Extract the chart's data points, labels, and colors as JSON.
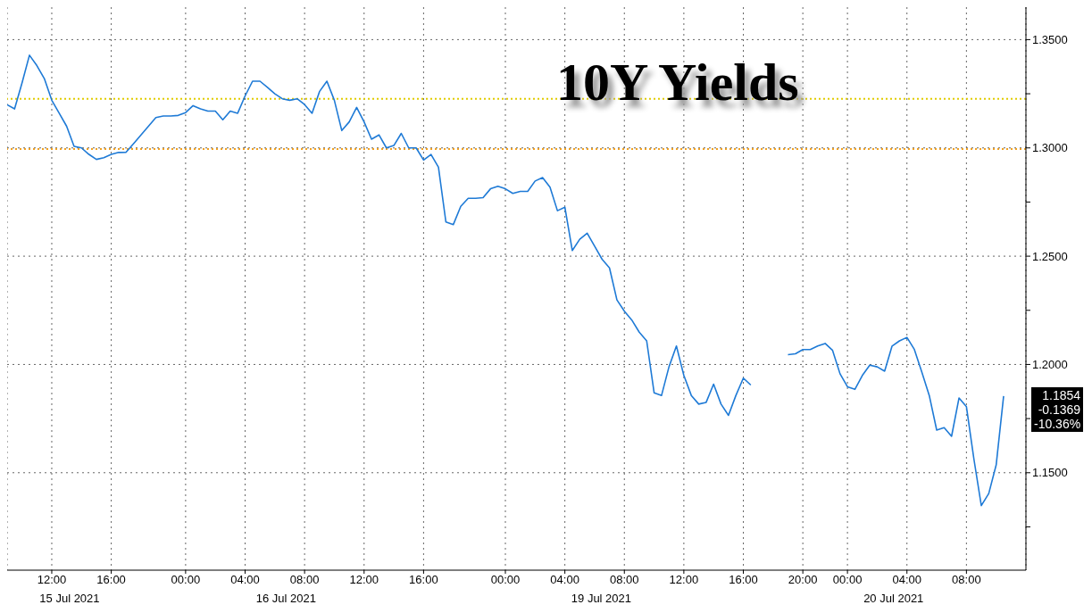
{
  "chart_data": {
    "type": "line",
    "title": "10Y Yields",
    "categories": [
      null,
      null,
      null,
      null,
      null,
      null,
      "12:00",
      null,
      null,
      null,
      null,
      null,
      null,
      null,
      "16:00",
      null,
      null,
      null,
      null,
      null,
      null,
      null,
      null,
      null,
      "00:00",
      null,
      null,
      null,
      null,
      null,
      null,
      null,
      "04:00",
      null,
      null,
      null,
      null,
      null,
      null,
      null,
      "08:00",
      null,
      null,
      null,
      null,
      null,
      null,
      null,
      "12:00",
      null,
      null,
      null,
      null,
      null,
      null,
      null,
      "16:00",
      null,
      null,
      null,
      null,
      null,
      null,
      null,
      null,
      null,
      null,
      "00:00",
      null,
      null,
      null,
      null,
      null,
      null,
      null,
      "04:00",
      null,
      null,
      null,
      null,
      null,
      null,
      null,
      "08:00",
      null,
      null,
      null,
      null,
      null,
      null,
      null,
      "12:00",
      null,
      null,
      null,
      null,
      null,
      null,
      null,
      "16:00",
      null,
      null,
      null,
      null,
      null,
      null,
      null,
      "20:00",
      null,
      null,
      null,
      null,
      null,
      "00:00",
      null,
      null,
      null,
      null,
      null,
      null,
      null,
      "04:00",
      null,
      null,
      null,
      null,
      null,
      null,
      null,
      "08:00",
      null,
      null,
      null,
      null,
      null,
      null,
      null,
      null
    ],
    "series": [
      {
        "color": "#1e7ad6",
        "values": [
          1.3199,
          1.318,
          1.33,
          1.3428,
          1.338,
          1.332,
          1.322,
          1.316,
          1.31,
          1.3007,
          1.3,
          1.297,
          1.2947,
          1.2955,
          1.297,
          1.2979,
          1.298,
          1.302,
          1.306,
          1.31,
          1.314,
          1.3147,
          1.3147,
          1.315,
          1.3163,
          1.3195,
          1.318,
          1.317,
          1.317,
          1.313,
          1.317,
          1.316,
          1.324,
          1.3308,
          1.3308,
          1.328,
          1.325,
          1.3227,
          1.322,
          1.3227,
          1.32,
          1.316,
          1.326,
          1.3308,
          1.322,
          1.308,
          1.312,
          1.3187,
          1.312,
          1.304,
          1.306,
          1.3,
          1.3011,
          1.3067,
          1.3,
          1.3,
          1.2944,
          1.297,
          1.2911,
          1.2658,
          1.2646,
          1.273,
          1.2767,
          1.2767,
          1.277,
          1.2811,
          1.2823,
          1.2811,
          1.279,
          1.2799,
          1.2799,
          1.2847,
          1.2863,
          1.2819,
          1.271,
          1.2726,
          1.2526,
          1.2578,
          1.2606,
          1.2546,
          1.2486,
          1.2446,
          1.2298,
          1.2246,
          1.2205,
          1.2149,
          1.2109,
          1.1869,
          1.1857,
          1.1989,
          1.2085,
          1.1949,
          1.1857,
          1.1817,
          1.1825,
          1.1909,
          1.1817,
          1.1765,
          1.1857,
          1.1937,
          1.1905,
          null,
          null,
          null,
          null,
          1.2045,
          1.2049,
          1.2069,
          1.2069,
          1.2085,
          1.2097,
          1.2065,
          1.1957,
          1.1897,
          1.1885,
          1.1949,
          1.1997,
          1.1989,
          1.1969,
          1.2085,
          1.2109,
          1.2125,
          1.2069,
          1.1965,
          1.1857,
          1.1697,
          1.1708,
          1.1668,
          1.1845,
          1.1805,
          1.1564,
          1.1348,
          1.1404,
          1.1536,
          1.1854,
          null,
          null,
          null
        ]
      }
    ],
    "ylim": [
      1.105,
      1.365
    ],
    "yticks": [
      {
        "value": 1.125,
        "label": null
      },
      {
        "value": 1.15,
        "label": "1.1500"
      },
      {
        "value": 1.175,
        "label": null
      },
      {
        "value": 1.2,
        "label": "1.2000"
      },
      {
        "value": 1.225,
        "label": null
      },
      {
        "value": 1.25,
        "label": "1.2500"
      },
      {
        "value": 1.275,
        "label": null
      },
      {
        "value": 1.3,
        "label": "1.3000"
      },
      {
        "value": 1.325,
        "label": null
      },
      {
        "value": 1.35,
        "label": "1.3500"
      }
    ],
    "ref_lines": [
      {
        "axis": "y",
        "value": 1.3227,
        "color": "#e0cc00",
        "line_style": "dotted"
      },
      {
        "axis": "y",
        "value": 1.2995,
        "color": "#f0a020",
        "line_style": "dotted"
      }
    ],
    "annotations": [
      {
        "text": "15 Jul 2021"
      },
      {
        "text": "16 Jul 2021"
      },
      {
        "text": "19 Jul 2021"
      },
      {
        "text": "20 Jul 2021"
      },
      "1.1854\n-0.1369\n-10.36%"
    ],
    "grid": true,
    "legend": false,
    "marker": "none",
    "line_style": "solid"
  }
}
